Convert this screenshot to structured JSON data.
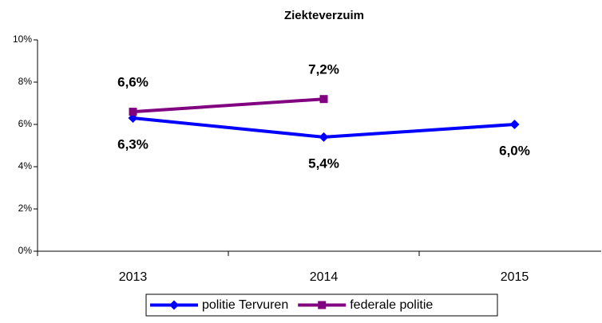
{
  "chart_data": {
    "type": "line",
    "title": "Ziekteverzuim",
    "categories": [
      "2013",
      "2014",
      "2015"
    ],
    "series": [
      {
        "name": "politie Tervuren",
        "color": "#0000ff",
        "marker": "diamond",
        "values": [
          6.3,
          5.4,
          6.0
        ],
        "value_labels": [
          "6,3%",
          "5,4%",
          "6,0%"
        ]
      },
      {
        "name": "federale politie",
        "color": "#800080",
        "marker": "square",
        "values": [
          6.6,
          7.2,
          null
        ],
        "value_labels": [
          "6,6%",
          "7,2%",
          null
        ]
      }
    ],
    "ylim": [
      0,
      10
    ],
    "yticks": [
      {
        "value": 0,
        "label": "0%"
      },
      {
        "value": 2,
        "label": "2%"
      },
      {
        "value": 4,
        "label": "4%"
      },
      {
        "value": 6,
        "label": "6%"
      },
      {
        "value": 8,
        "label": "8%"
      },
      {
        "value": 10,
        "label": "10%"
      }
    ],
    "grid": false,
    "legend": "bottom"
  }
}
